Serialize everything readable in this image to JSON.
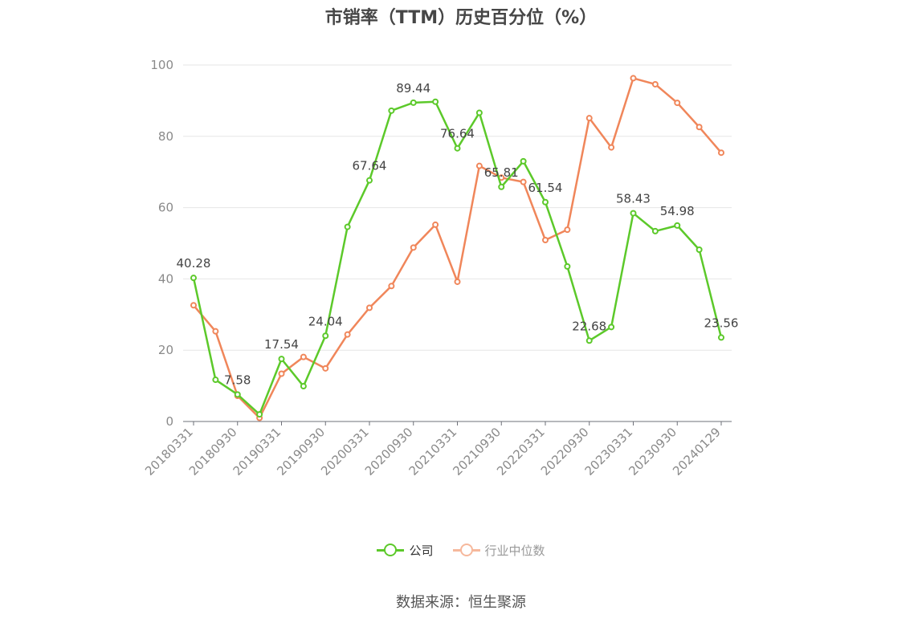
{
  "chart_data": {
    "type": "line",
    "title": "市销率（TTM）历史百分位（%）",
    "xlabel": "",
    "ylabel": "",
    "ylim": [
      0,
      100
    ],
    "yticks": [
      0,
      20,
      40,
      60,
      80,
      100
    ],
    "grid": true,
    "legend_position": "bottom",
    "x": [
      "20180331",
      "20180630",
      "20180930",
      "20181231",
      "20190331",
      "20190630",
      "20190930",
      "20191231",
      "20200331",
      "20200630",
      "20200930",
      "20201231",
      "20210331",
      "20210630",
      "20210930",
      "20211231",
      "20220331",
      "20220630",
      "20220930",
      "20221231",
      "20230331",
      "20230630",
      "20230930",
      "20231231",
      "20240129"
    ],
    "xtick_labels": [
      "20180331",
      "20180930",
      "20190331",
      "20190930",
      "20200331",
      "20200930",
      "20210331",
      "20210930",
      "20220331",
      "20220930",
      "20230331",
      "20230930",
      "20240129"
    ],
    "series": [
      {
        "name": "公司",
        "color": "#5cc92a",
        "values": [
          40.28,
          11.7,
          7.58,
          2.0,
          17.54,
          9.9,
          24.04,
          54.6,
          67.64,
          87.2,
          89.44,
          89.7,
          76.64,
          86.6,
          65.81,
          73.0,
          61.54,
          43.5,
          22.68,
          26.5,
          58.43,
          53.4,
          54.98,
          48.2,
          23.56
        ],
        "labels": {
          "0": "40.28",
          "2": "7.58",
          "4": "17.54",
          "6": "24.04",
          "8": "67.64",
          "10": "89.44",
          "12": "76.64",
          "14": "65.81",
          "16": "61.54",
          "18": "22.68",
          "20": "58.43",
          "22": "54.98",
          "24": "23.56"
        }
      },
      {
        "name": "行业中位数",
        "color": "#f0865a",
        "values": [
          32.6,
          25.3,
          7.2,
          1.0,
          13.4,
          18.1,
          14.9,
          24.4,
          31.9,
          38.0,
          48.8,
          55.2,
          39.2,
          71.7,
          68.4,
          67.2,
          50.9,
          53.8,
          85.1,
          76.9,
          96.3,
          94.6,
          89.4,
          82.6,
          75.4
        ]
      }
    ]
  },
  "legend": {
    "items": [
      {
        "label": "公司",
        "color": "#5cc92a",
        "active": true
      },
      {
        "label": "行业中位数",
        "color": "#f6b89c",
        "active": false
      }
    ]
  },
  "footer": {
    "source": "数据来源：恒生聚源"
  }
}
